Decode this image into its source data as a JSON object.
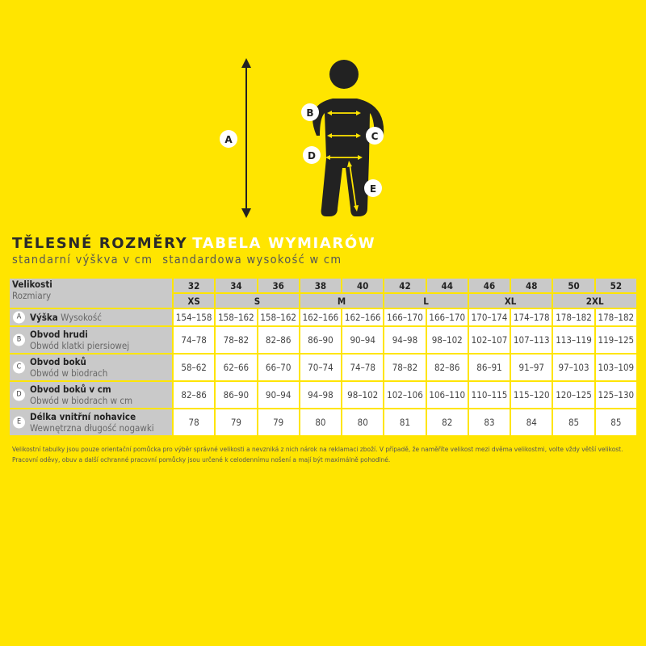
{
  "figure": {
    "labels": [
      "A",
      "B",
      "C",
      "D",
      "E"
    ]
  },
  "title": {
    "cz": "TĚLESNÉ ROZMĚRY",
    "pl": "TABELA WYMIARÓW"
  },
  "subtitle": {
    "cz": "standarní výškva v cm",
    "pl": "standardowa wysokość w cm"
  },
  "table": {
    "header_label_cz": "Velikosti",
    "header_label_pl": "Rozmiary",
    "sizes": [
      "32",
      "34",
      "36",
      "38",
      "40",
      "42",
      "44",
      "46",
      "48",
      "50",
      "52"
    ],
    "groups": [
      {
        "label": "XS"
      },
      {
        "label": "S"
      },
      {
        "label": "M"
      },
      {
        "label": "L"
      },
      {
        "label": "XL"
      },
      {
        "label": "2XL"
      }
    ],
    "rows": [
      {
        "letter": "A",
        "cz": "Výška",
        "pl": "Wysokość",
        "values": [
          "154–158",
          "158–162",
          "158–162",
          "162–166",
          "162–166",
          "166–170",
          "166–170",
          "170–174",
          "174–178",
          "178–182",
          "178–182"
        ]
      },
      {
        "letter": "B",
        "cz": "Obvod hrudi",
        "pl": "Obwód klatki piersiowej",
        "values": [
          "74–78",
          "78–82",
          "82–86",
          "86–90",
          "90–94",
          "94–98",
          "98–102",
          "102–107",
          "107–113",
          "113–119",
          "119–125"
        ]
      },
      {
        "letter": "C",
        "cz": "Obvod boků",
        "pl": "Obwód w biodrach",
        "values": [
          "58–62",
          "62–66",
          "66–70",
          "70–74",
          "74–78",
          "78–82",
          "82–86",
          "86–91",
          "91–97",
          "97–103",
          "103–109"
        ]
      },
      {
        "letter": "D",
        "cz": "Obvod boků v cm",
        "pl": "Obwód w biodrach w cm",
        "values": [
          "82–86",
          "86–90",
          "90–94",
          "94–98",
          "98–102",
          "102–106",
          "106–110",
          "110–115",
          "115–120",
          "120–125",
          "125–130"
        ]
      },
      {
        "letter": "E",
        "cz": "Délka vnitřní nohavice",
        "pl": "Wewnętrzna długość nogawki",
        "values": [
          "78",
          "79",
          "79",
          "80",
          "80",
          "81",
          "82",
          "83",
          "84",
          "85",
          "85"
        ]
      }
    ]
  },
  "note": "Velikostní tabulky jsou pouze orientační pomůcka pro výběr správné velikosti a nevzniká z nich nárok na reklamaci zboží. V případě, že naměříte velikost mezi dvěma velikostmi, volte vždy větší velikost. Pracovní oděvy, obuv a další ochranné pracovní pomůcky jsou určené k celodennímu nošení a mají být maximálně pohodlné.",
  "colors": {
    "background": "#ffe500",
    "cell_gray": "#c9c9c9",
    "figure": "#222222"
  }
}
